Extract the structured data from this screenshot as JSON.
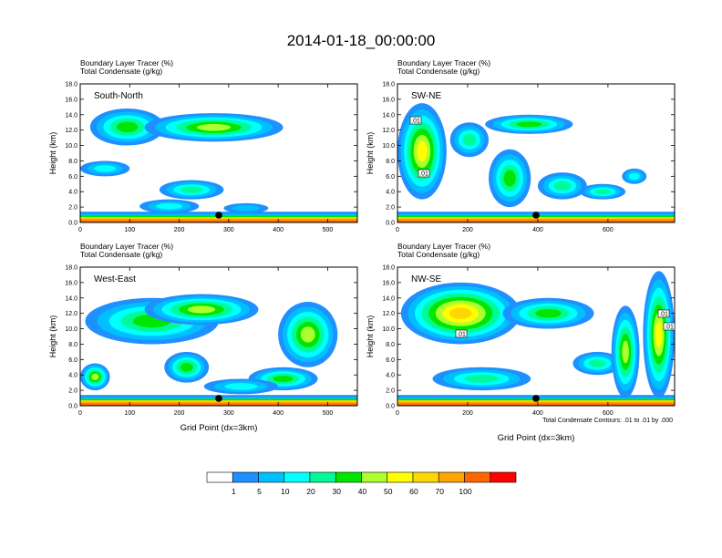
{
  "figure": {
    "title": "2014-01-18_00:00:00",
    "header_line1": "Boundary Layer Tracer    (%)",
    "header_line2": "Total Condensate    (g/kg)",
    "ylabel": "Height (km)",
    "xlabel": "Grid Point (dx=3km)",
    "contour_note": "Total Condensate Contours: .01 to .01 by .000",
    "contour_tag": ".01"
  },
  "colorbar": {
    "levels": [
      "1",
      "5",
      "10",
      "20",
      "30",
      "40",
      "50",
      "60",
      "70",
      "100"
    ],
    "colors": [
      "#ffffff",
      "#1e90ff",
      "#00bfff",
      "#00ffff",
      "#00fa9a",
      "#00e600",
      "#adff2f",
      "#ffff00",
      "#ffd700",
      "#ffa500",
      "#ff6600",
      "#ff0000"
    ]
  },
  "chart_data": [
    {
      "type": "heatmap",
      "name": "South-North",
      "xlim": [
        0,
        560
      ],
      "ylim": [
        0,
        18
      ],
      "xticks": [
        "0",
        "100",
        "200",
        "300",
        "400",
        "500"
      ],
      "yticks": [
        "0.0",
        "2.0",
        "4.0",
        "6.0",
        "8.0",
        "10.0",
        "12.0",
        "14.0",
        "16.0",
        "18.0"
      ],
      "marker_x": 280,
      "tracer_blobs": [
        {
          "x0": 20,
          "x1": 170,
          "y0": 10.0,
          "y1": 14.8,
          "peak": 30
        },
        {
          "x0": 130,
          "x1": 410,
          "y0": 10.5,
          "y1": 14.2,
          "peak": 40
        },
        {
          "x0": 0,
          "x1": 100,
          "y0": 6.0,
          "y1": 8.0,
          "peak": 10
        },
        {
          "x0": 160,
          "x1": 290,
          "y0": 3.0,
          "y1": 5.5,
          "peak": 20
        },
        {
          "x0": 120,
          "x1": 240,
          "y0": 1.2,
          "y1": 3.0,
          "peak": 10
        },
        {
          "x0": 290,
          "x1": 380,
          "y0": 1.2,
          "y1": 2.5,
          "peak": 5
        }
      ]
    },
    {
      "type": "heatmap",
      "name": "SW-NE",
      "xlim": [
        0,
        790
      ],
      "ylim": [
        0,
        18
      ],
      "xticks": [
        "0",
        "200",
        "400",
        "600"
      ],
      "yticks": [
        "0.0",
        "2.0",
        "4.0",
        "6.0",
        "8.0",
        "10.0",
        "12.0",
        "14.0",
        "16.0",
        "18.0"
      ],
      "marker_x": 395,
      "tracer_blobs": [
        {
          "x0": 0,
          "x1": 140,
          "y0": 3.0,
          "y1": 15.5,
          "peak": 50
        },
        {
          "x0": 150,
          "x1": 260,
          "y0": 8.5,
          "y1": 13.0,
          "peak": 20
        },
        {
          "x0": 250,
          "x1": 500,
          "y0": 11.5,
          "y1": 14.0,
          "peak": 30
        },
        {
          "x0": 260,
          "x1": 380,
          "y0": 2.0,
          "y1": 9.5,
          "peak": 30
        },
        {
          "x0": 400,
          "x1": 540,
          "y0": 3.0,
          "y1": 6.5,
          "peak": 20
        },
        {
          "x0": 520,
          "x1": 650,
          "y0": 3.0,
          "y1": 5.0,
          "peak": 20
        },
        {
          "x0": 640,
          "x1": 710,
          "y0": 5.0,
          "y1": 7.0,
          "peak": 10
        }
      ]
    },
    {
      "type": "heatmap",
      "name": "West-East",
      "xlim": [
        0,
        560
      ],
      "ylim": [
        0,
        18
      ],
      "xticks": [
        "0",
        "100",
        "200",
        "300",
        "400",
        "500"
      ],
      "yticks": [
        "0.0",
        "2.0",
        "4.0",
        "6.0",
        "8.0",
        "10.0",
        "12.0",
        "14.0",
        "16.0",
        "18.0"
      ],
      "marker_x": 280,
      "tracer_blobs": [
        {
          "x0": 10,
          "x1": 280,
          "y0": 8.0,
          "y1": 14.0,
          "peak": 30
        },
        {
          "x0": 130,
          "x1": 360,
          "y0": 10.5,
          "y1": 14.5,
          "peak": 40
        },
        {
          "x0": 0,
          "x1": 60,
          "y0": 2.0,
          "y1": 5.5,
          "peak": 40
        },
        {
          "x0": 170,
          "x1": 260,
          "y0": 3.0,
          "y1": 7.0,
          "peak": 30
        },
        {
          "x0": 400,
          "x1": 520,
          "y0": 5.0,
          "y1": 13.5,
          "peak": 40
        },
        {
          "x0": 340,
          "x1": 480,
          "y0": 2.0,
          "y1": 5.0,
          "peak": 30
        },
        {
          "x0": 250,
          "x1": 400,
          "y0": 1.5,
          "y1": 3.5,
          "peak": 10
        }
      ]
    },
    {
      "type": "heatmap",
      "name": "NW-SE",
      "xlim": [
        0,
        790
      ],
      "ylim": [
        0,
        18
      ],
      "xticks": [
        "0",
        "200",
        "400",
        "600"
      ],
      "yticks": [
        "0.0",
        "2.0",
        "4.0",
        "6.0",
        "8.0",
        "10.0",
        "12.0",
        "14.0",
        "16.0",
        "18.0"
      ],
      "marker_x": 395,
      "tracer_blobs": [
        {
          "x0": 10,
          "x1": 350,
          "y0": 8.0,
          "y1": 16.0,
          "peak": 60
        },
        {
          "x0": 300,
          "x1": 560,
          "y0": 10.0,
          "y1": 14.0,
          "peak": 30
        },
        {
          "x0": 100,
          "x1": 380,
          "y0": 2.0,
          "y1": 5.0,
          "peak": 20
        },
        {
          "x0": 500,
          "x1": 640,
          "y0": 4.0,
          "y1": 7.0,
          "peak": 20
        },
        {
          "x0": 610,
          "x1": 690,
          "y0": 1.0,
          "y1": 13.0,
          "peak": 40
        },
        {
          "x0": 700,
          "x1": 790,
          "y0": 1.0,
          "y1": 17.5,
          "peak": 50
        }
      ]
    }
  ]
}
